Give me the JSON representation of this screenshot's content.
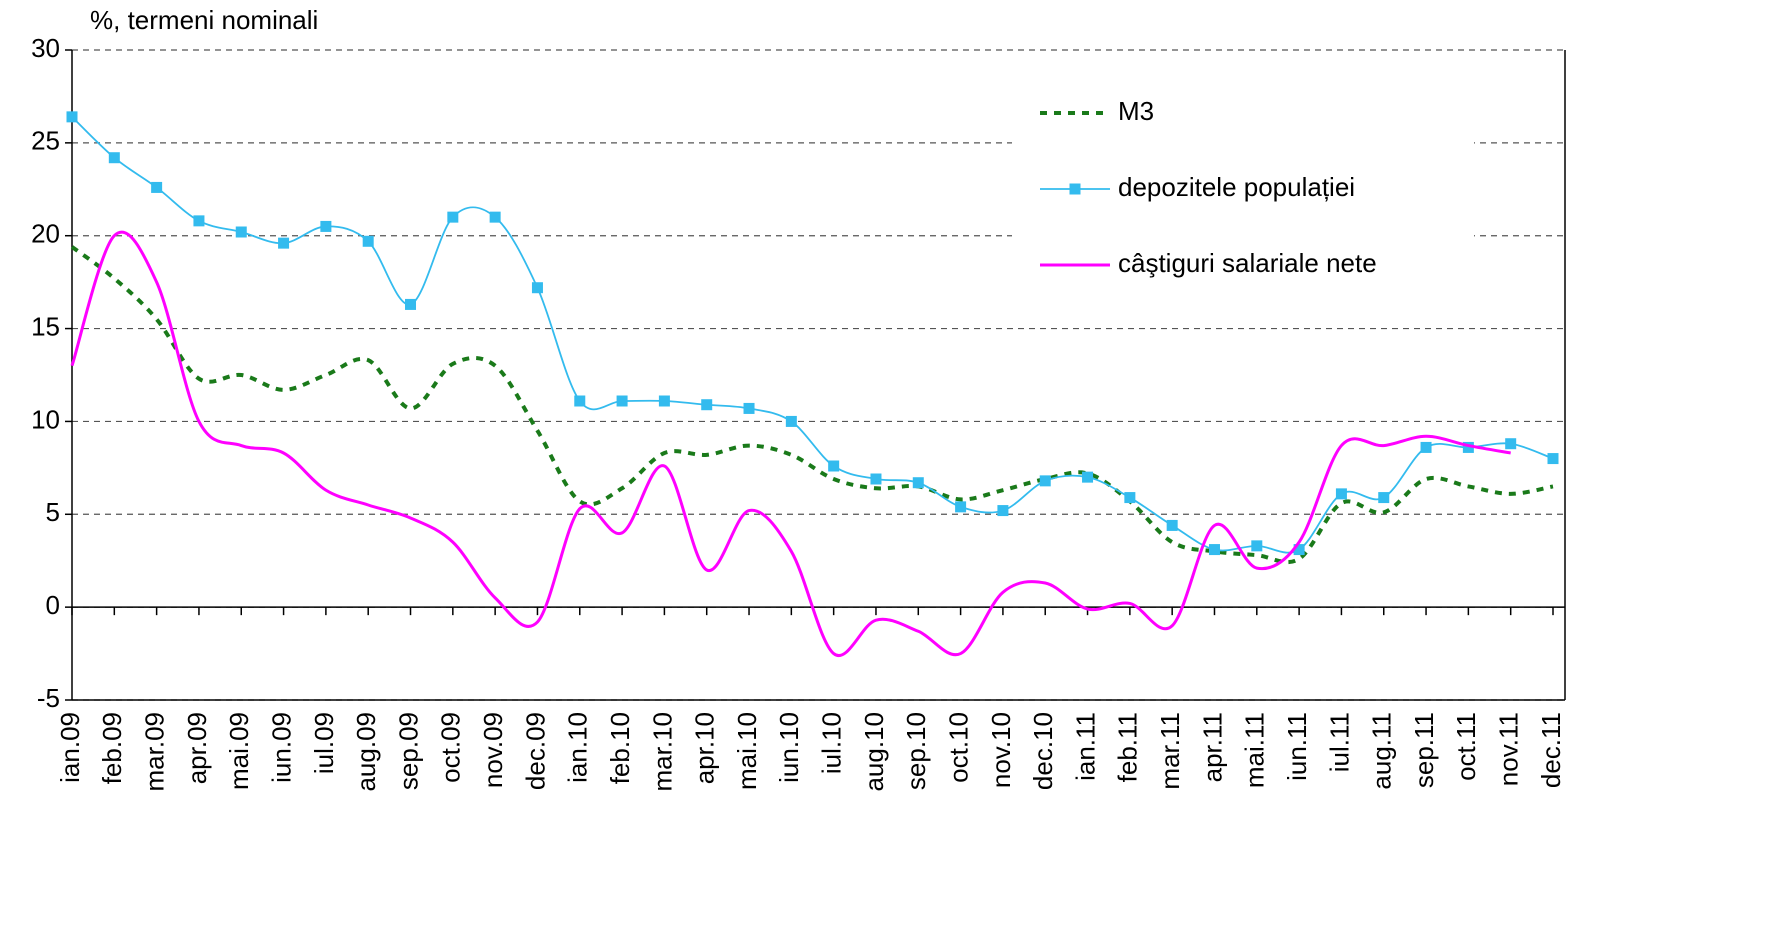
{
  "chart_data": {
    "type": "line",
    "y_label": "%, termeni nominali",
    "categories": [
      "ian.09",
      "feb.09",
      "mar.09",
      "apr.09",
      "mai.09",
      "iun.09",
      "iul.09",
      "aug.09",
      "sep.09",
      "oct.09",
      "nov.09",
      "dec.09",
      "ian.10",
      "feb.10",
      "mar.10",
      "apr.10",
      "mai.10",
      "iun.10",
      "iul.10",
      "aug.10",
      "sep.10",
      "oct.10",
      "nov.10",
      "dec.10",
      "ian.11",
      "feb.11",
      "mar.11",
      "apr.11",
      "mai.11",
      "iun.11",
      "iul.11",
      "aug.11",
      "sep.11",
      "oct.11",
      "nov.11",
      "dec.11"
    ],
    "series": [
      {
        "name": "M3",
        "color": "#1a7a1a",
        "style": "dotted",
        "values": [
          19.4,
          17.7,
          15.5,
          12.3,
          12.5,
          11.7,
          12.5,
          13.3,
          10.7,
          13.1,
          13.0,
          9.5,
          5.7,
          6.4,
          8.3,
          8.2,
          8.7,
          8.2,
          6.9,
          6.4,
          6.5,
          5.8,
          6.3,
          6.9,
          7.2,
          5.7,
          3.5,
          3.0,
          2.8,
          2.6,
          5.6,
          5.1,
          6.9,
          6.5,
          6.1,
          6.5
        ]
      },
      {
        "name": "depozitele populației",
        "color": "#33bbee",
        "style": "markers",
        "values": [
          26.4,
          24.2,
          22.6,
          20.8,
          20.2,
          19.6,
          20.5,
          19.7,
          16.3,
          21.0,
          21.0,
          17.2,
          11.1,
          11.1,
          11.1,
          10.9,
          10.7,
          10.0,
          7.6,
          6.9,
          6.7,
          5.4,
          5.2,
          6.8,
          7.0,
          5.9,
          4.4,
          3.1,
          3.3,
          3.1,
          6.1,
          5.9,
          8.6,
          8.6,
          8.8,
          8.0
        ]
      },
      {
        "name": "câştiguri salariale nete",
        "color": "#ff00ff",
        "style": "solid",
        "values": [
          13.0,
          20.0,
          17.5,
          10.0,
          8.7,
          8.3,
          6.3,
          5.5,
          4.8,
          3.5,
          0.5,
          -0.8,
          5.3,
          4.0,
          7.6,
          2.0,
          5.2,
          3.0,
          -2.5,
          -0.7,
          -1.3,
          -2.5,
          0.8,
          1.3,
          -0.1,
          0.2,
          -1.0,
          4.4,
          2.1,
          3.5,
          8.7,
          8.7,
          9.2,
          8.7,
          8.3,
          null
        ]
      }
    ],
    "ylim": [
      -5,
      30
    ],
    "yticks": [
      -5,
      0,
      5,
      10,
      15,
      20,
      25,
      30
    ],
    "grid": true,
    "smooth": true,
    "legend": "upper right"
  }
}
